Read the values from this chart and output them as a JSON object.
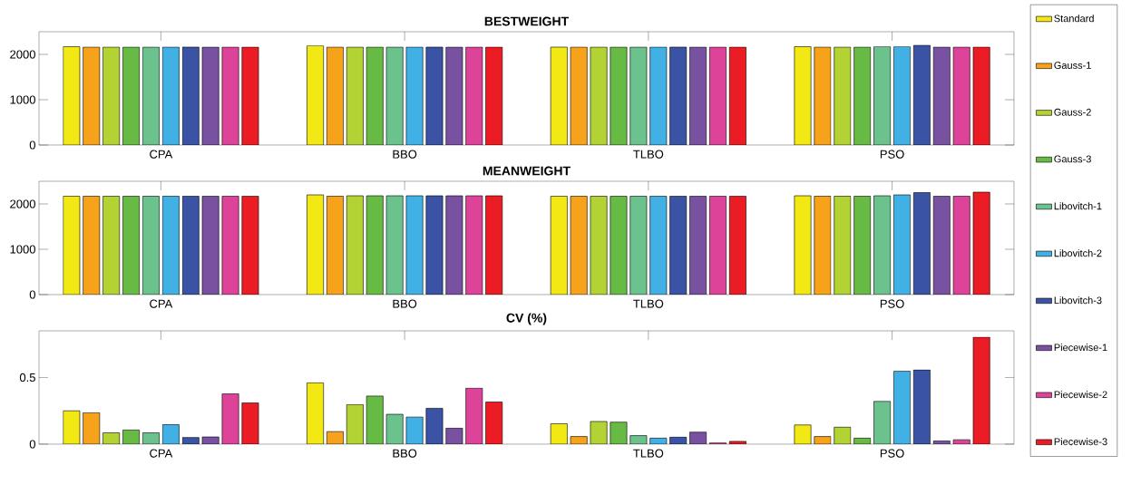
{
  "chart_data": [
    {
      "type": "bar",
      "title": "BESTWEIGHT",
      "categories": [
        "CPA",
        "BBO",
        "TLBO",
        "PSO"
      ],
      "ylim": [
        0,
        2500
      ],
      "yticks": [
        0,
        1000,
        2000
      ],
      "legend": "right",
      "series": [
        {
          "name": "Standard",
          "color": "#f2e814",
          "values": [
            2170,
            2190,
            2160,
            2170
          ]
        },
        {
          "name": "Gauss-1",
          "color": "#f7a21b",
          "values": [
            2160,
            2160,
            2160,
            2160
          ]
        },
        {
          "name": "Gauss-2",
          "color": "#b3d334",
          "values": [
            2160,
            2160,
            2160,
            2160
          ]
        },
        {
          "name": "Gauss-3",
          "color": "#67bb45",
          "values": [
            2160,
            2160,
            2160,
            2160
          ]
        },
        {
          "name": "Libovitch-1",
          "color": "#6cc28d",
          "values": [
            2160,
            2160,
            2160,
            2170
          ]
        },
        {
          "name": "Libovitch-2",
          "color": "#41b0e4",
          "values": [
            2160,
            2160,
            2160,
            2170
          ]
        },
        {
          "name": "Libovitch-3",
          "color": "#3a53a4",
          "values": [
            2160,
            2160,
            2160,
            2200
          ]
        },
        {
          "name": "Piecewise-1",
          "color": "#7851a1",
          "values": [
            2160,
            2160,
            2160,
            2160
          ]
        },
        {
          "name": "Piecewise-2",
          "color": "#dc4399",
          "values": [
            2160,
            2160,
            2160,
            2160
          ]
        },
        {
          "name": "Piecewise-3",
          "color": "#ec1c24",
          "values": [
            2160,
            2160,
            2160,
            2160
          ]
        }
      ]
    },
    {
      "type": "bar",
      "title": "MEANWEIGHT",
      "categories": [
        "CPA",
        "BBO",
        "TLBO",
        "PSO"
      ],
      "ylim": [
        0,
        2500
      ],
      "yticks": [
        0,
        1000,
        2000
      ],
      "series": [
        {
          "color": "#f2e814",
          "values": [
            2170,
            2200,
            2170,
            2180
          ]
        },
        {
          "color": "#f7a21b",
          "values": [
            2170,
            2170,
            2170,
            2170
          ]
        },
        {
          "color": "#b3d334",
          "values": [
            2170,
            2180,
            2170,
            2170
          ]
        },
        {
          "color": "#67bb45",
          "values": [
            2170,
            2180,
            2170,
            2170
          ]
        },
        {
          "color": "#6cc28d",
          "values": [
            2170,
            2180,
            2170,
            2180
          ]
        },
        {
          "color": "#41b0e4",
          "values": [
            2170,
            2180,
            2170,
            2200
          ]
        },
        {
          "color": "#3a53a4",
          "values": [
            2170,
            2180,
            2170,
            2250
          ]
        },
        {
          "color": "#7851a1",
          "values": [
            2170,
            2180,
            2170,
            2170
          ]
        },
        {
          "color": "#dc4399",
          "values": [
            2170,
            2180,
            2170,
            2170
          ]
        },
        {
          "color": "#ec1c24",
          "values": [
            2170,
            2180,
            2170,
            2260
          ]
        }
      ]
    },
    {
      "type": "bar",
      "title": "CV (%)",
      "categories": [
        "CPA",
        "BBO",
        "TLBO",
        "PSO"
      ],
      "ylim": [
        0,
        0.85
      ],
      "yticks": [
        0,
        0.5
      ],
      "series": [
        {
          "color": "#f2e814",
          "values": [
            0.25,
            0.46,
            0.153,
            0.144
          ]
        },
        {
          "color": "#f7a21b",
          "values": [
            0.236,
            0.094,
            0.057,
            0.057
          ]
        },
        {
          "color": "#b3d334",
          "values": [
            0.085,
            0.297,
            0.17,
            0.127
          ]
        },
        {
          "color": "#67bb45",
          "values": [
            0.106,
            0.361,
            0.165,
            0.045
          ]
        },
        {
          "color": "#6cc28d",
          "values": [
            0.085,
            0.224,
            0.064,
            0.321
          ]
        },
        {
          "color": "#41b0e4",
          "values": [
            0.146,
            0.203,
            0.045,
            0.547
          ]
        },
        {
          "color": "#3a53a4",
          "values": [
            0.05,
            0.269,
            0.052,
            0.557
          ]
        },
        {
          "color": "#7851a1",
          "values": [
            0.054,
            0.12,
            0.09,
            0.024
          ]
        },
        {
          "color": "#dc4399",
          "values": [
            0.377,
            0.42,
            0.009,
            0.033
          ]
        },
        {
          "color": "#ec1c24",
          "values": [
            0.309,
            0.316,
            0.021,
            0.802
          ]
        }
      ]
    }
  ]
}
